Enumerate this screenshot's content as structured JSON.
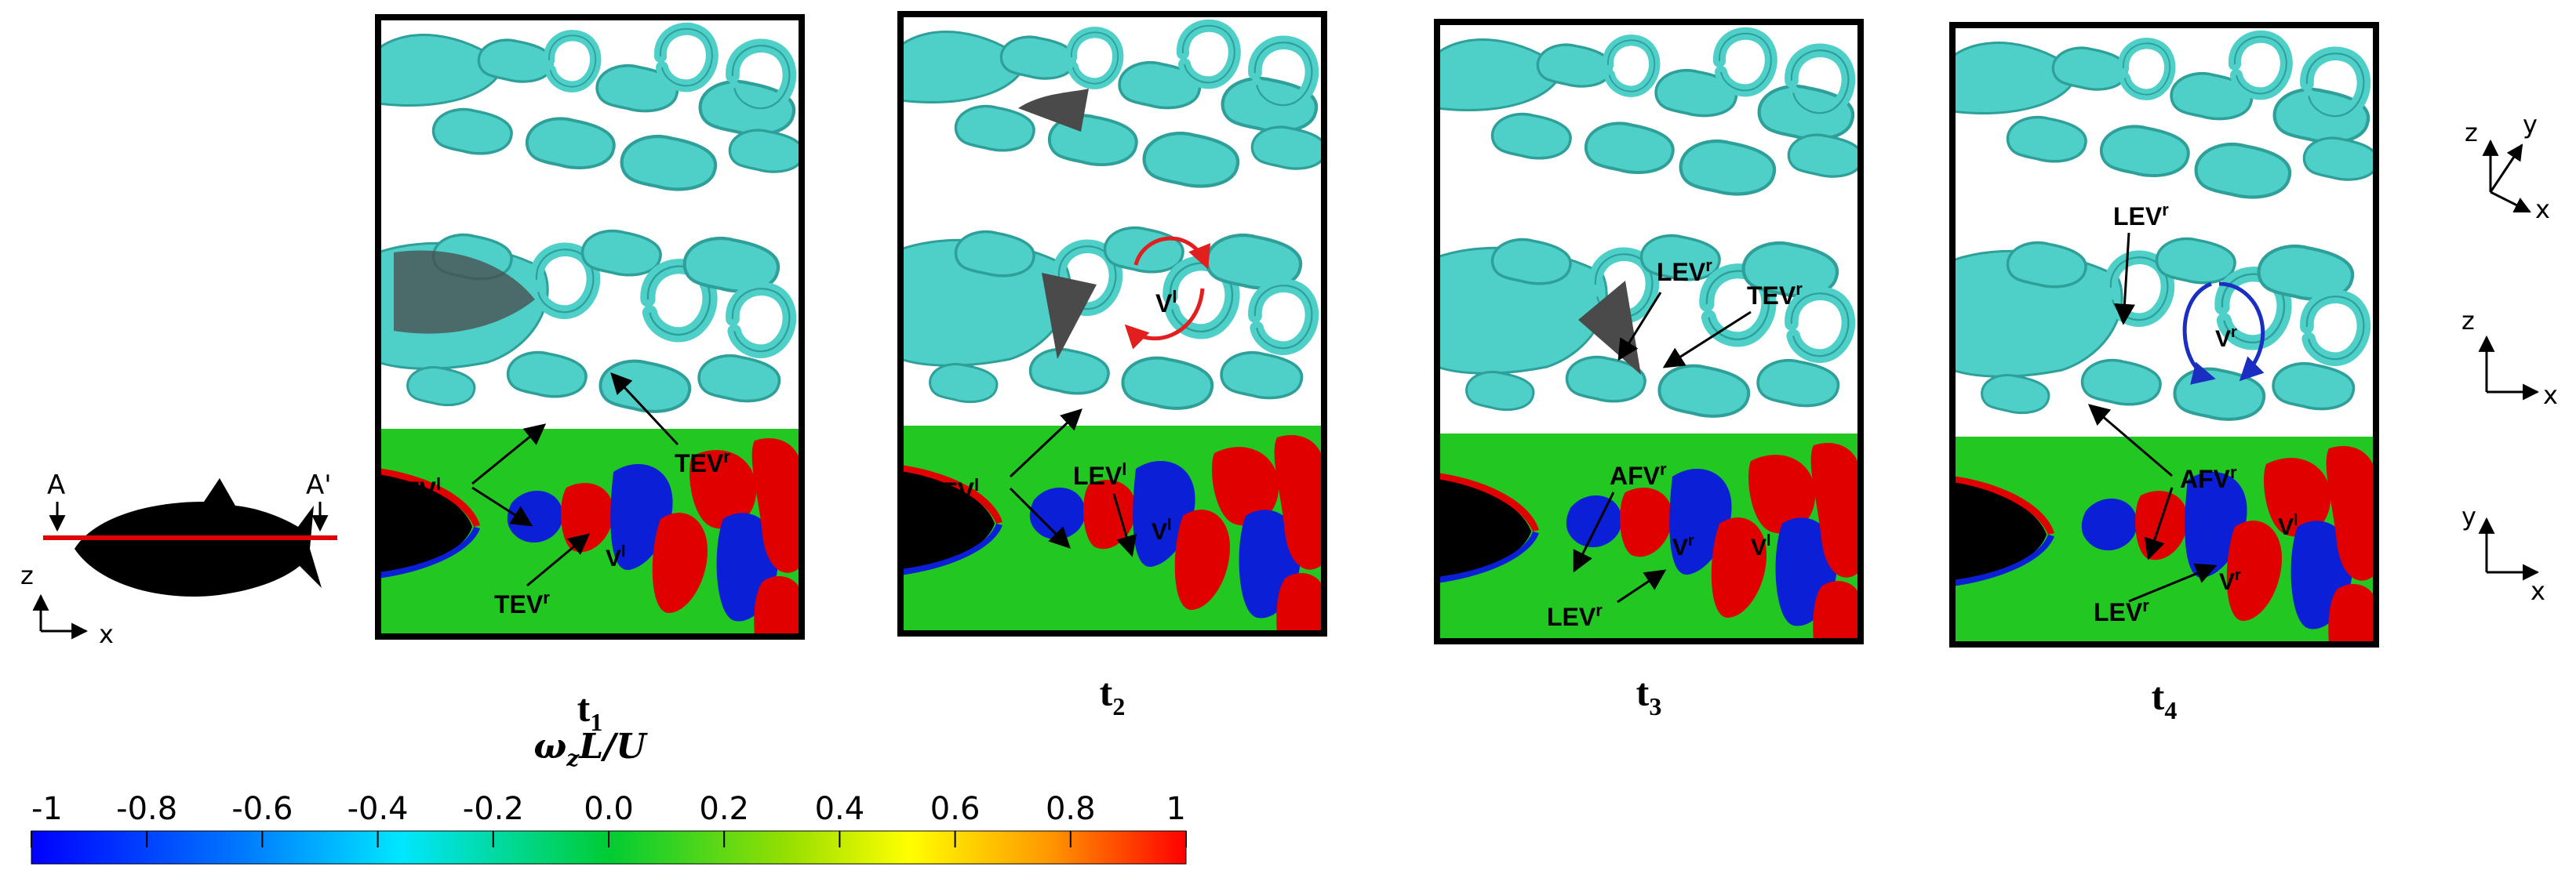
{
  "schematic": {
    "marker_left": "A",
    "marker_right": "A'",
    "axis_vertical": "z",
    "axis_horizontal": "x"
  },
  "panels": [
    {
      "time_label": "t",
      "time_subscript": "1",
      "labels": [
        "AFV",
        "TEV",
        "TEV",
        "V"
      ],
      "superscripts": [
        "l",
        "r",
        "r",
        "l"
      ]
    },
    {
      "time_label": "t",
      "time_subscript": "2",
      "labels": [
        "V",
        "AFV",
        "LEV",
        "V"
      ],
      "superscripts": [
        "l",
        "l",
        "l",
        "l"
      ]
    },
    {
      "time_label": "t",
      "time_subscript": "3",
      "labels": [
        "LEV",
        "TEV",
        "AFV",
        "V",
        "V",
        "LEV"
      ],
      "superscripts": [
        "r",
        "r",
        "r",
        "r",
        "l",
        "r"
      ]
    },
    {
      "time_label": "t",
      "time_subscript": "4",
      "labels": [
        "LEV",
        "V",
        "AFV",
        "V",
        "V",
        "LEV"
      ],
      "superscripts": [
        "r",
        "r",
        "r",
        "l",
        "r",
        "r"
      ]
    }
  ],
  "axes_iso": {
    "z": "z",
    "y": "y",
    "x": "x"
  },
  "axes_side": {
    "z": "z",
    "x": "x"
  },
  "axes_top": {
    "y": "y",
    "x": "x"
  },
  "colorbar": {
    "title": "ωzL/U",
    "title_main": "ω",
    "title_sub": "z",
    "title_rest": "L/U",
    "ticks": [
      "-1",
      "-0.8",
      "-0.6",
      "-0.4",
      "-0.2",
      "0.0",
      "0.2",
      "0.4",
      "0.6",
      "0.8",
      "1"
    ],
    "colors": {
      "min": "#0000ff",
      "low": "#00e6ff",
      "mid": "#00cc33",
      "high": "#ffff00",
      "max": "#ff0000"
    }
  },
  "colors": {
    "vortex": "#4ecfc8",
    "vortex_dark": "#2e9f99",
    "body": "#4a4a4a",
    "vorticity_bg": "#22c722",
    "positive": "#e00000",
    "negative": "#0b1fd6",
    "arrow_red": "#e21e1e",
    "arrow_blue": "#1a2fc2"
  }
}
